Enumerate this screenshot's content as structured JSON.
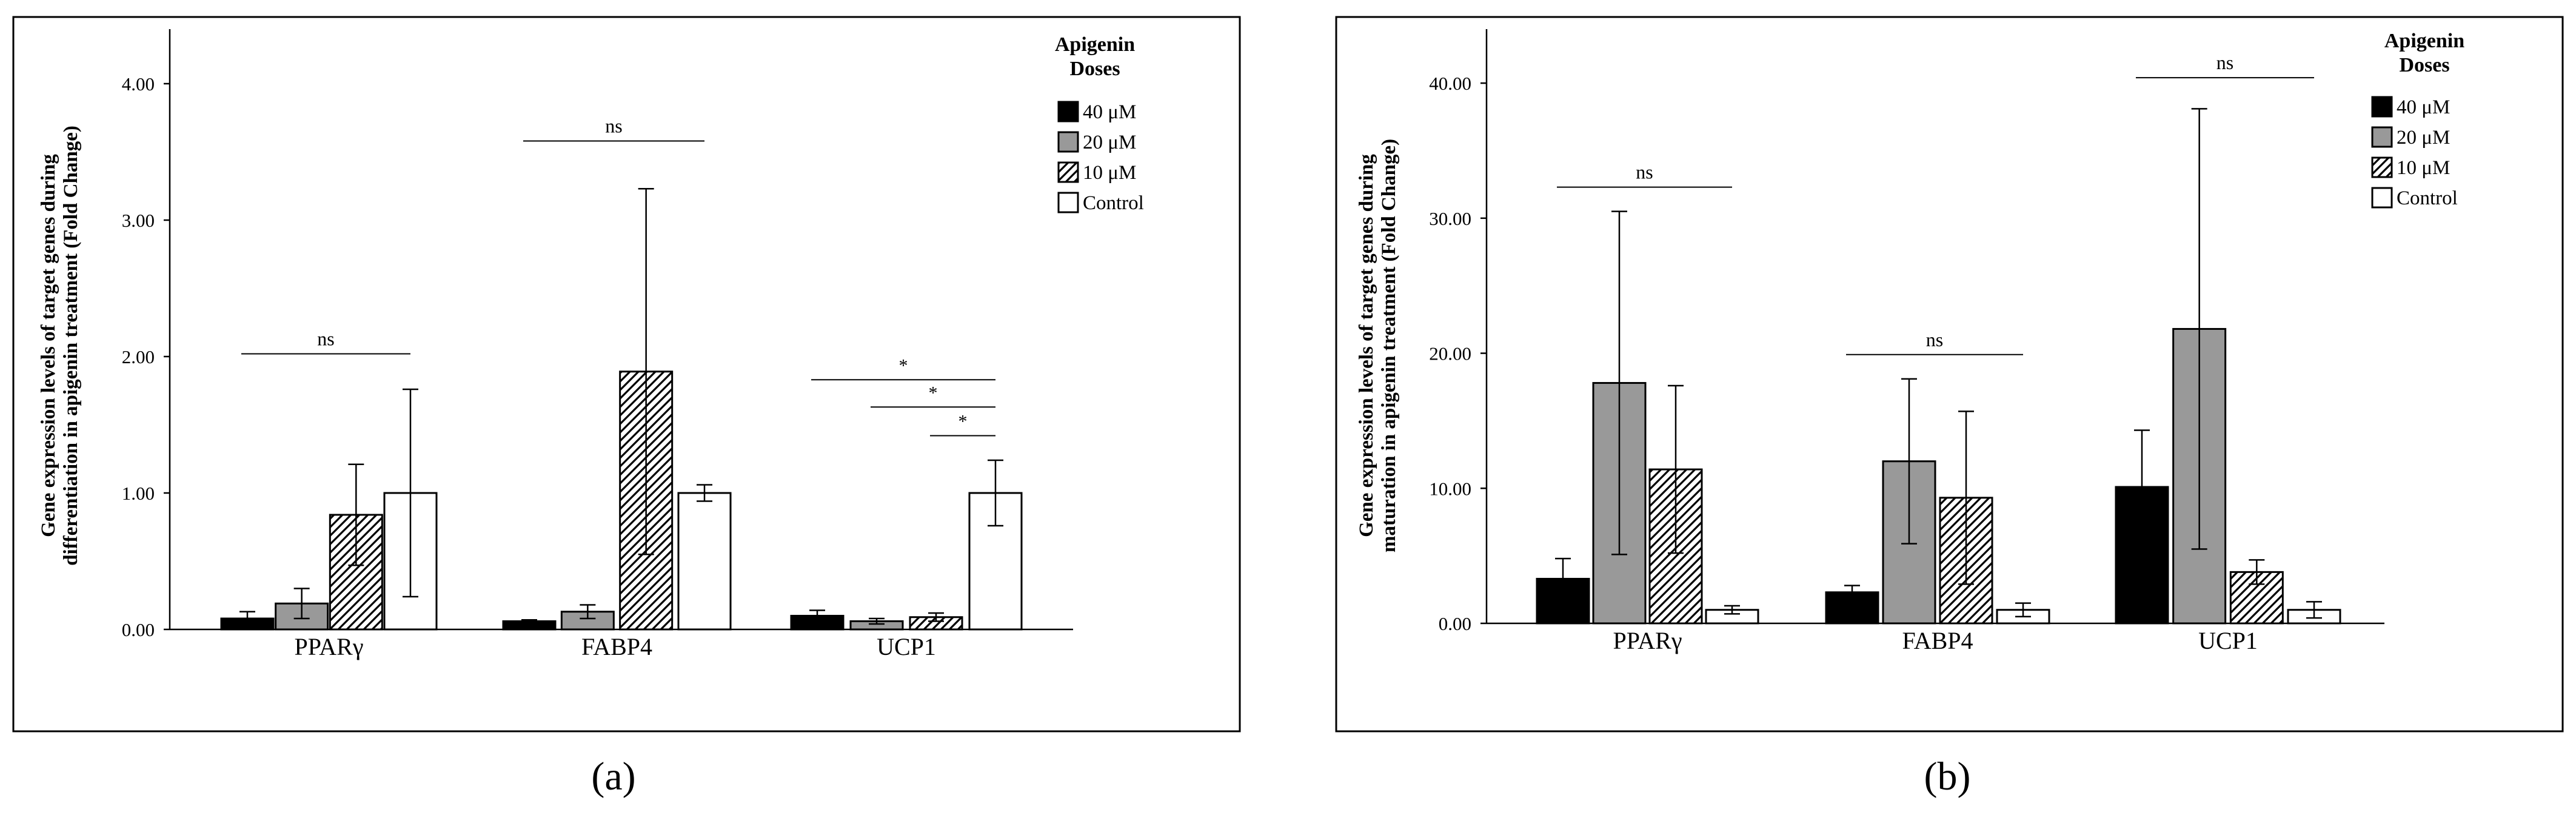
{
  "chart_data": [
    {
      "panel_label": "(a)",
      "type": "bar",
      "ylabel": "Gene expression levels of target genes during differentiation in apigenin treatment (Fold Change)",
      "ylabel_lines": [
        "Gene expression levels of target genes during",
        "differentiation in apigenin treatment (Fold Change)"
      ],
      "ylim": [
        0,
        4.4
      ],
      "yticks": [
        0,
        1,
        2,
        3,
        4
      ],
      "ytick_labels": [
        "0.00",
        "1.00",
        "2.00",
        "3.00",
        "4.00"
      ],
      "categories": [
        "PPARγ",
        "FABP4",
        "UCP1"
      ],
      "legend": {
        "title_lines": [
          "Apigenin",
          "Doses"
        ],
        "position": "top-right"
      },
      "series": [
        {
          "name": "40 μM",
          "fill": "#000000",
          "values": [
            0.08,
            0.06,
            0.1
          ],
          "errors": [
            0.05,
            0.01,
            0.04
          ]
        },
        {
          "name": "20 μM",
          "fill": "#999999",
          "values": [
            0.19,
            0.13,
            0.06
          ],
          "errors": [
            0.11,
            0.05,
            0.02
          ]
        },
        {
          "name": "10 μM",
          "fill": "hatch",
          "values": [
            0.84,
            1.89,
            0.09
          ],
          "errors": [
            0.37,
            1.34,
            0.03
          ]
        },
        {
          "name": "Control",
          "fill": "#ffffff",
          "values": [
            1.0,
            1.0,
            1.0
          ],
          "errors": [
            0.76,
            0.06,
            0.24
          ]
        }
      ],
      "annotations": [
        {
          "text": "ns",
          "y": 2.02,
          "category": 0,
          "from": 0,
          "to": 3
        },
        {
          "text": "ns",
          "y": 3.58,
          "category": 1,
          "from": 0,
          "to": 3
        },
        {
          "text": "*",
          "y": 1.83,
          "category": 2,
          "from": 0,
          "to": 3
        },
        {
          "text": "*",
          "y": 1.63,
          "category": 2,
          "from": 1,
          "to": 3
        },
        {
          "text": "*",
          "y": 1.42,
          "category": 2,
          "from": 2,
          "to": 3
        }
      ]
    },
    {
      "panel_label": "(b)",
      "type": "bar",
      "ylabel": "Gene expression levels of target genes during maturation in apigenin treatment (Fold Change)",
      "ylabel_lines": [
        "Gene expression levels of target genes during",
        "maturation in apigenin treatment (Fold Change)"
      ],
      "ylim": [
        0,
        44
      ],
      "yticks": [
        0,
        10,
        20,
        30,
        40
      ],
      "ytick_labels": [
        "0.00",
        "10.00",
        "20.00",
        "30.00",
        "40.00"
      ],
      "categories": [
        "PPARγ",
        "FABP4",
        "UCP1"
      ],
      "legend": {
        "title_lines": [
          "Apigenin",
          "Doses"
        ],
        "position": "top-right"
      },
      "series": [
        {
          "name": "40 μM",
          "fill": "#000000",
          "values": [
            3.3,
            2.3,
            10.1
          ],
          "errors": [
            1.5,
            0.5,
            4.2
          ]
        },
        {
          "name": "20 μM",
          "fill": "#999999",
          "values": [
            17.8,
            12.0,
            21.8
          ],
          "errors": [
            12.7,
            6.1,
            16.3
          ]
        },
        {
          "name": "10 μM",
          "fill": "hatch",
          "values": [
            11.4,
            9.3,
            3.8
          ],
          "errors": [
            6.2,
            6.4,
            0.9
          ]
        },
        {
          "name": "Control",
          "fill": "#ffffff",
          "values": [
            1.0,
            1.0,
            1.0
          ],
          "errors": [
            0.3,
            0.5,
            0.6
          ]
        }
      ],
      "annotations": [
        {
          "text": "ns",
          "y": 32.3,
          "category": 0,
          "from": 0,
          "to": 3
        },
        {
          "text": "ns",
          "y": 19.9,
          "category": 1,
          "from": 0,
          "to": 3
        },
        {
          "text": "ns",
          "y": 40.4,
          "category": 2,
          "from": 0,
          "to": 3
        }
      ]
    }
  ]
}
